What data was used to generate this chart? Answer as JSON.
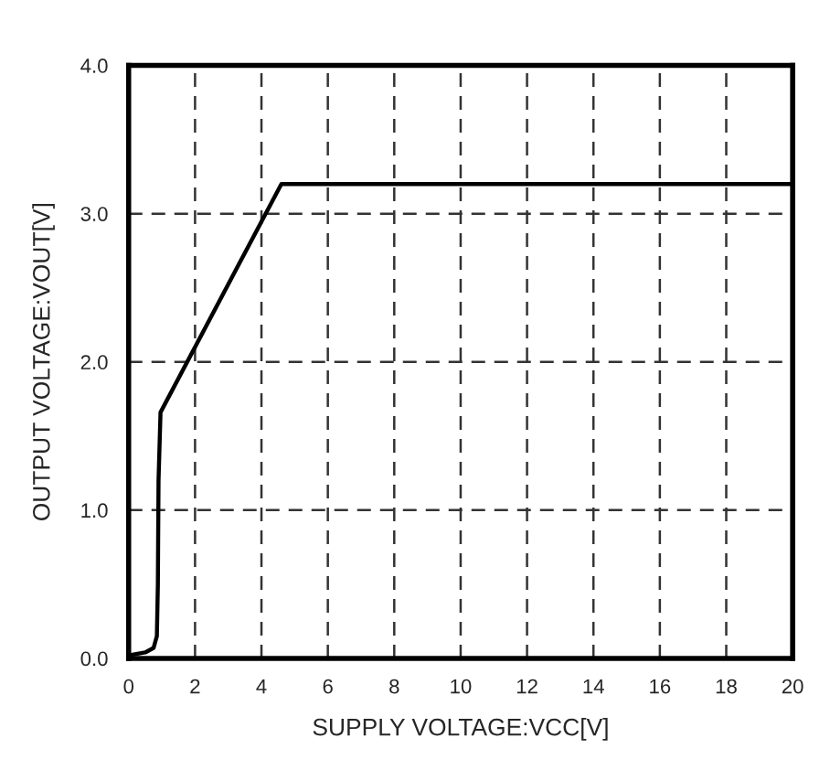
{
  "chart_data": {
    "type": "line",
    "xlabel": "SUPPLY VOLTAGE:VCC[V]",
    "ylabel": "OUTPUT VOLTAGE:VOUT[V]",
    "x": [
      0,
      0.5,
      0.75,
      0.85,
      0.88,
      0.9,
      0.96,
      4.6,
      20
    ],
    "series": [
      {
        "color": "#000000",
        "values": [
          0.02,
          0.04,
          0.07,
          0.15,
          0.5,
          1.2,
          1.66,
          3.2,
          3.2
        ]
      }
    ],
    "xlim": [
      0,
      20
    ],
    "xticks": [
      0,
      2,
      4,
      6,
      8,
      10,
      12,
      14,
      16,
      18,
      20
    ],
    "ylim": [
      0,
      4
    ],
    "yticks": [
      {
        "value": 0,
        "label": "0.0"
      },
      {
        "value": 1,
        "label": "1.0"
      },
      {
        "value": 2,
        "label": "2.0"
      },
      {
        "value": 3,
        "label": "3.0"
      },
      {
        "value": 4,
        "label": "4.0"
      }
    ],
    "grid": true,
    "line_style": "solid",
    "marker": "none"
  }
}
